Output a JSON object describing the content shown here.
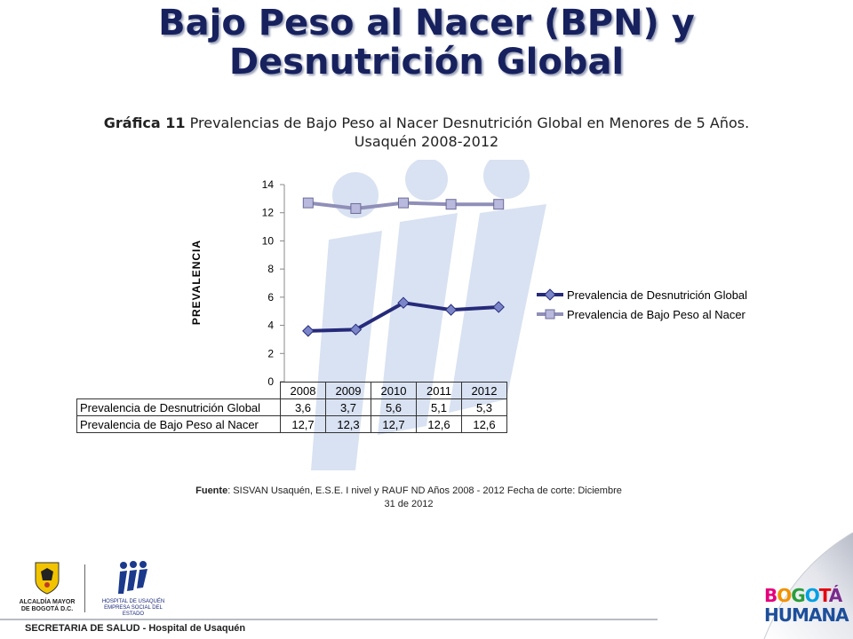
{
  "slide": {
    "title_line1": "Bajo Peso al Nacer (BPN) y",
    "title_line2": "Desnutrición Global",
    "subtitle_bold": "Gráfica 11",
    "subtitle_text": " Prevalencias de Bajo Peso al Nacer Desnutrición Global en Menores de 5 Años.",
    "subtitle_line2": "Usaquén 2008-2012",
    "source_bold": "Fuente",
    "source_text": ": SISVAN Usaquén, E.S.E. I nivel y RAUF ND Años 2008 - 2012  Fecha de corte: Diciembre",
    "source_line2": "31 de 2012",
    "footer": "SECRETARIA DE SALUD - Hospital de Usaquén",
    "logo_alcaldia_line1": "ALCALDÍA MAYOR",
    "logo_alcaldia_line2": "DE BOGOTÁ D.C.",
    "logo_hospital_line1": "HOSPITAL DE USAQUÉN",
    "logo_hospital_line2": "EMPRESA SOCIAL DEL ESTADO",
    "bogota_line1": "BOGOTÁ",
    "bogota_line2": "HUMANA"
  },
  "colors": {
    "title": "#17215e",
    "series_desnutricion": "#262a7a",
    "series_bajo_peso": "#8f8fb8",
    "marker_desnutricion": "#7b86c9",
    "marker_bajo_peso": "#b8b9dc",
    "watermark": "#d9e2f2"
  },
  "chart_data": {
    "type": "line",
    "categories": [
      "2008",
      "2009",
      "2010",
      "2011",
      "2012"
    ],
    "series": [
      {
        "name": "Prevalencia de Desnutrición Global",
        "values": [
          3.6,
          3.7,
          5.6,
          5.1,
          5.3
        ],
        "labels": [
          "3,6",
          "3,7",
          "5,6",
          "5,1",
          "5,3"
        ],
        "marker": "diamond"
      },
      {
        "name": "Prevalencia de Bajo Peso al Nacer",
        "values": [
          12.7,
          12.3,
          12.7,
          12.6,
          12.6
        ],
        "labels": [
          "12,7",
          "12,3",
          "12,7",
          "12,6",
          "12,6"
        ],
        "marker": "square"
      }
    ],
    "ylabel": "PREVALENCIA",
    "ylim": [
      0,
      14
    ],
    "yticks": [
      "0",
      "2",
      "4",
      "6",
      "8",
      "10",
      "12",
      "14"
    ],
    "grid": false,
    "legend": "right",
    "data_table": true
  }
}
